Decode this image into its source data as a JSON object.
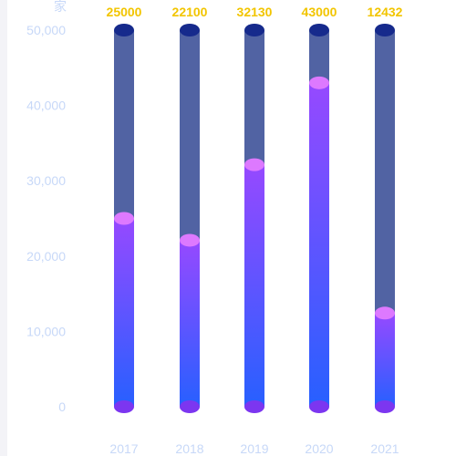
{
  "chart_data": {
    "type": "bar",
    "unit": "家",
    "categories": [
      "2017",
      "2018",
      "2019",
      "2020",
      "2021"
    ],
    "values": [
      25000,
      22100,
      32130,
      43000,
      12432
    ],
    "value_labels": [
      "25000",
      "22100",
      "32130",
      "43000",
      "12432"
    ],
    "ylim": [
      0,
      50000
    ],
    "y_ticks": [
      0,
      10000,
      20000,
      30000,
      40000,
      50000
    ],
    "y_tick_labels": [
      "0",
      "10,000",
      "20,000",
      "30,000",
      "40,000",
      "50,000"
    ],
    "grid": false,
    "colors": {
      "background_bar": "#5163a3",
      "background_cap": "#162a8c",
      "fill_top": "#9649ff",
      "fill_bottom": "#2760ff",
      "fill_cap": "#dd79ff",
      "base_cap": "#7c36f0",
      "axis_text": "#c7d8f8",
      "value_text": "#f2c500"
    }
  }
}
